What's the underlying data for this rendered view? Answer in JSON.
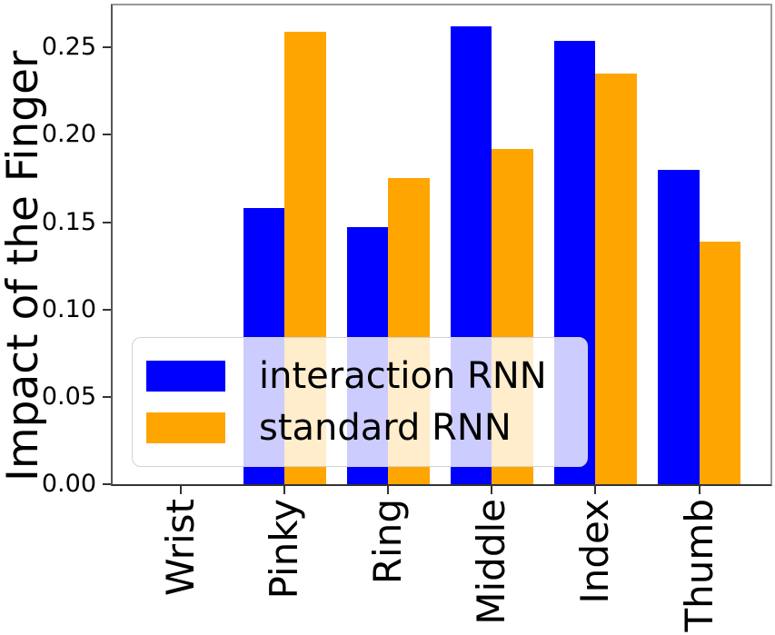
{
  "chart_data": {
    "type": "bar",
    "title": "",
    "xlabel": "",
    "ylabel": "Impact of the Finger",
    "categories": [
      "Wrist",
      "Pinky",
      "Ring",
      "Middle",
      "Index",
      "Thumb"
    ],
    "series": [
      {
        "name": "interaction RNN",
        "color": "#0000ff",
        "values": [
          0,
          0.158,
          0.147,
          0.262,
          0.254,
          0.18
        ]
      },
      {
        "name": "standard RNN",
        "color": "#ffa500",
        "values": [
          0,
          0.259,
          0.175,
          0.192,
          0.235,
          0.139
        ]
      }
    ],
    "ylim": [
      0,
      0.274
    ],
    "yticks": [
      0.0,
      0.05,
      0.1,
      0.15,
      0.2,
      0.25
    ],
    "ytick_labels": [
      "0.00",
      "0.05",
      "0.10",
      "0.15",
      "0.20",
      "0.25"
    ],
    "xtick_rotation": 90,
    "grid": false,
    "legend_position": "lower left",
    "legend_opacity": 0.8,
    "axis_color": "#555555",
    "background_color": "#ffffff"
  }
}
